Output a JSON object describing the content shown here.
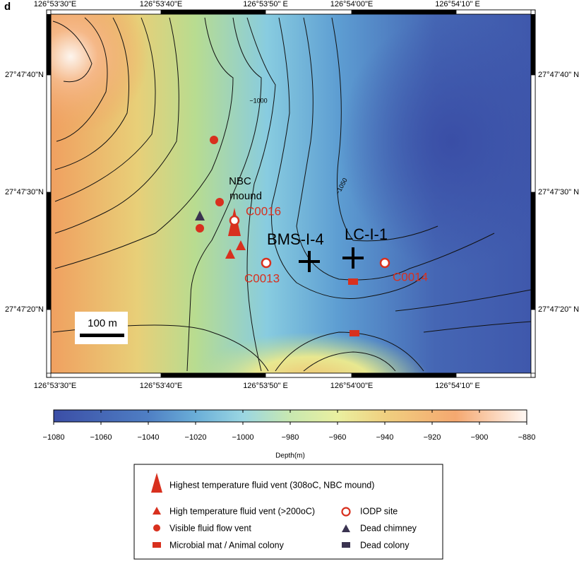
{
  "panel_label": "d",
  "map": {
    "top_longitudes": [
      "126°53'30\"E",
      "126°53'40\"E",
      "126°53'50\" E",
      "126°54'00\"E",
      "126°54'10\" E"
    ],
    "bottom_longitudes": [
      "126°53'30\"E",
      "126°53'40\"E",
      "126°53'50\" E",
      "126°54'00\"E",
      "126°54'10\" E"
    ],
    "left_latitudes": [
      "27°47'40\"N",
      "27°47'30\"N",
      "27°47'20\"N"
    ],
    "right_latitudes": [
      "27°47'40\" N",
      "27°47'30\" N",
      "27°47'20\" N"
    ],
    "contour_labels": [
      "−1000",
      "−1050"
    ],
    "sites": {
      "nbc": [
        "NBC",
        "mound"
      ],
      "c0016": "C0016",
      "c0013": "C0013",
      "c0014": "C0014",
      "bms": "BMS-I-4",
      "lc": "LC-I-1"
    },
    "scale_bar": "100 m"
  },
  "colorbar": {
    "label": "Depth(m)",
    "range": [
      -1080,
      -880
    ],
    "ticks": [
      {
        "value": -1080,
        "label": "−1080"
      },
      {
        "value": -1060,
        "label": "−1060"
      },
      {
        "value": -1040,
        "label": "−1040"
      },
      {
        "value": -1020,
        "label": "−1020"
      },
      {
        "value": -1000,
        "label": "−1000"
      },
      {
        "value": -980,
        "label": "−980"
      },
      {
        "value": -960,
        "label": "−960"
      },
      {
        "value": -940,
        "label": "−940"
      },
      {
        "value": -920,
        "label": "−920"
      },
      {
        "value": -900,
        "label": "−900"
      },
      {
        "value": -880,
        "label": "−880"
      }
    ]
  },
  "legend": {
    "highest": "Highest temperature fluid vent (308oC, NBC mound)",
    "high": "High temperature fluid vent (>200oC)",
    "visible": "Visible fluid flow vent",
    "mat": "Microbial mat / Animal colony",
    "iodp": "IODP site",
    "chimney": "Dead chimney",
    "colony": "Dead colony"
  }
}
